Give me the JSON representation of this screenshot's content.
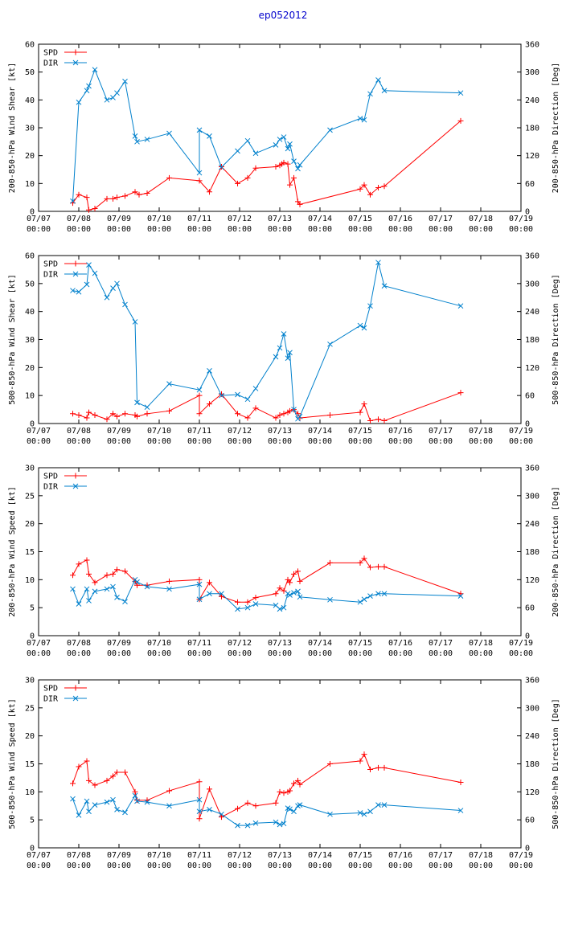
{
  "page": {
    "title": "ep052012",
    "title_color": "#0000cc"
  },
  "colors": {
    "spd": "#ff0000",
    "dir": "#0080cc",
    "axis": "#000000"
  },
  "x_axis": {
    "min": 0,
    "max": 12,
    "ticks": [
      0,
      1,
      2,
      3,
      4,
      5,
      6,
      7,
      8,
      9,
      10,
      11,
      12
    ],
    "tick_labels": [
      "07/07",
      "07/08",
      "07/09",
      "07/10",
      "07/11",
      "07/12",
      "07/13",
      "07/14",
      "07/15",
      "07/16",
      "07/17",
      "07/18",
      "07/19"
    ],
    "tick_sublabels": [
      "00:00",
      "00:00",
      "00:00",
      "00:00",
      "00:00",
      "00:00",
      "00:00",
      "00:00",
      "00:00",
      "00:00",
      "00:00",
      "00:00",
      "00:00"
    ]
  },
  "chart_data": [
    {
      "type": "line",
      "ylabel": "200-850-hPa Wind Shear [kt]",
      "y2label": "200-850-hPa Direction [Deg]",
      "ylim": [
        0,
        60
      ],
      "yticks": [
        0,
        10,
        20,
        30,
        40,
        50,
        60
      ],
      "y2lim": [
        0,
        360
      ],
      "y2ticks": [
        0,
        60,
        120,
        180,
        240,
        300,
        360
      ],
      "series": [
        {
          "name": "SPD",
          "axis": "left",
          "x": [
            0.85,
            1.0,
            1.2,
            1.25,
            1.4,
            1.7,
            1.85,
            1.95,
            2.15,
            2.4,
            2.5,
            2.7,
            3.25,
            4.0,
            4.25,
            4.55,
            4.95,
            5.2,
            5.4,
            5.9,
            6.0,
            6.05,
            6.1,
            6.2,
            6.25,
            6.35,
            6.45,
            6.5,
            8.0,
            8.1,
            8.25,
            8.45,
            8.6,
            10.5
          ],
          "y": [
            3,
            6,
            5,
            0.5,
            1,
            4.5,
            4.5,
            5,
            5.5,
            7,
            6,
            6.5,
            12,
            11,
            7,
            16,
            10,
            12,
            15.5,
            16,
            16.5,
            17,
            17.5,
            17,
            9.5,
            12,
            3.5,
            2.5,
            8,
            9.5,
            6,
            8.5,
            9,
            32.5
          ]
        },
        {
          "name": "DIR",
          "axis": "right",
          "x": [
            0.85,
            1.0,
            1.2,
            1.25,
            1.4,
            1.7,
            1.85,
            1.95,
            2.15,
            2.4,
            2.45,
            2.7,
            3.25,
            4.0,
            4.0,
            4.25,
            4.55,
            4.95,
            5.2,
            5.4,
            5.9,
            6.0,
            6.1,
            6.2,
            6.25,
            6.35,
            6.45,
            6.5,
            7.25,
            8.0,
            8.1,
            8.25,
            8.45,
            8.6,
            10.5
          ],
          "y": [
            22,
            235,
            260,
            270,
            305,
            240,
            245,
            255,
            280,
            162,
            150,
            155,
            168,
            83,
            175,
            162,
            95,
            130,
            152,
            125,
            143,
            155,
            160,
            135,
            145,
            108,
            92,
            100,
            175,
            200,
            197,
            253,
            283,
            260,
            255
          ]
        }
      ]
    },
    {
      "type": "line",
      "ylabel": "500-850-hPa Wind Shear [kt]",
      "y2label": "500-850-hPa Direction [Deg]",
      "ylim": [
        0,
        60
      ],
      "yticks": [
        0,
        10,
        20,
        30,
        40,
        50,
        60
      ],
      "y2lim": [
        0,
        360
      ],
      "y2ticks": [
        0,
        60,
        120,
        180,
        240,
        300,
        360
      ],
      "series": [
        {
          "name": "SPD",
          "axis": "left",
          "x": [
            0.85,
            1.0,
            1.2,
            1.25,
            1.4,
            1.7,
            1.85,
            1.95,
            2.15,
            2.4,
            2.45,
            2.7,
            3.25,
            4.0,
            4.0,
            4.25,
            4.55,
            4.95,
            5.2,
            5.4,
            5.9,
            6.0,
            6.1,
            6.2,
            6.25,
            6.35,
            6.45,
            6.5,
            7.25,
            8.0,
            8.1,
            8.25,
            8.45,
            8.6,
            10.5
          ],
          "y": [
            3.5,
            3,
            2,
            4,
            3,
            1.5,
            3.5,
            2.5,
            3.5,
            3,
            2.5,
            3.5,
            4.5,
            10,
            3.5,
            7,
            10.5,
            3.5,
            2,
            5.5,
            2,
            3,
            3.5,
            4,
            4.5,
            5,
            3.5,
            2,
            3,
            4,
            7,
            1,
            1.5,
            1,
            11
          ]
        },
        {
          "name": "DIR",
          "axis": "right",
          "x": [
            0.85,
            1.0,
            1.2,
            1.25,
            1.4,
            1.7,
            1.85,
            1.95,
            2.15,
            2.4,
            2.45,
            2.7,
            3.25,
            4.0,
            4.25,
            4.55,
            4.95,
            5.2,
            5.4,
            5.9,
            6.0,
            6.1,
            6.2,
            6.25,
            6.35,
            6.45,
            6.5,
            7.25,
            8.0,
            8.1,
            8.25,
            8.45,
            8.6,
            10.5
          ],
          "y": [
            285,
            282,
            298,
            340,
            322,
            270,
            290,
            300,
            255,
            218,
            45,
            35,
            85,
            72,
            113,
            60,
            62,
            52,
            75,
            143,
            162,
            192,
            140,
            152,
            30,
            10,
            15,
            170,
            210,
            205,
            252,
            345,
            295,
            252
          ]
        }
      ]
    },
    {
      "type": "line",
      "ylabel": "200-850-hPa Wind Speed [kt]",
      "y2label": "200-850-hPa Direction [Deg]",
      "ylim": [
        0,
        30
      ],
      "yticks": [
        0,
        5,
        10,
        15,
        20,
        25,
        30
      ],
      "y2lim": [
        0,
        360
      ],
      "y2ticks": [
        0,
        60,
        120,
        180,
        240,
        300,
        360
      ],
      "series": [
        {
          "name": "SPD",
          "axis": "left",
          "x": [
            0.85,
            1.0,
            1.2,
            1.25,
            1.4,
            1.7,
            1.85,
            1.95,
            2.15,
            2.4,
            2.45,
            2.7,
            3.25,
            4.0,
            4.0,
            4.25,
            4.55,
            4.95,
            5.2,
            5.4,
            5.9,
            6.0,
            6.1,
            6.2,
            6.25,
            6.35,
            6.45,
            6.5,
            7.25,
            8.0,
            8.1,
            8.25,
            8.45,
            8.6,
            10.5
          ],
          "y": [
            10.8,
            12.8,
            13.5,
            11,
            9.5,
            10.8,
            11,
            11.8,
            11.5,
            9.7,
            9,
            9,
            9.7,
            10,
            6.5,
            9.5,
            7,
            6,
            6,
            6.8,
            7.5,
            8.5,
            8,
            10,
            9.5,
            11,
            11.5,
            9.7,
            13,
            13,
            13.8,
            12.2,
            12.3,
            12.3,
            7.5
          ]
        },
        {
          "name": "DIR",
          "axis": "right",
          "x": [
            0.85,
            1.0,
            1.2,
            1.25,
            1.4,
            1.7,
            1.85,
            1.95,
            2.15,
            2.4,
            2.45,
            2.7,
            3.25,
            4.0,
            4.0,
            4.25,
            4.55,
            4.95,
            5.2,
            5.4,
            5.9,
            6.0,
            6.1,
            6.2,
            6.25,
            6.35,
            6.45,
            6.5,
            7.25,
            8.0,
            8.1,
            8.25,
            8.45,
            8.6,
            10.5
          ],
          "y": [
            100,
            68,
            100,
            75,
            95,
            100,
            105,
            82,
            73,
            120,
            115,
            105,
            100,
            110,
            78,
            90,
            90,
            57,
            60,
            68,
            65,
            57,
            60,
            90,
            87,
            92,
            95,
            83,
            77,
            72,
            78,
            85,
            90,
            90,
            85
          ]
        }
      ]
    },
    {
      "type": "line",
      "ylabel": "500-850-hPa Wind Speed [kt]",
      "y2label": "500-850-hPa Direction [Deg]",
      "ylim": [
        0,
        30
      ],
      "yticks": [
        0,
        5,
        10,
        15,
        20,
        25,
        30
      ],
      "y2lim": [
        0,
        360
      ],
      "y2ticks": [
        0,
        60,
        120,
        180,
        240,
        300,
        360
      ],
      "series": [
        {
          "name": "SPD",
          "axis": "left",
          "x": [
            0.85,
            1.0,
            1.2,
            1.25,
            1.4,
            1.7,
            1.85,
            1.95,
            2.15,
            2.4,
            2.45,
            2.7,
            3.25,
            4.0,
            4.0,
            4.25,
            4.55,
            4.95,
            5.2,
            5.4,
            5.9,
            6.0,
            6.1,
            6.2,
            6.25,
            6.35,
            6.45,
            6.5,
            7.25,
            8.0,
            8.1,
            8.25,
            8.45,
            8.6,
            10.5
          ],
          "y": [
            11.5,
            14.5,
            15.5,
            12,
            11.2,
            12,
            12.8,
            13.5,
            13.5,
            10,
            8.5,
            8.5,
            10.2,
            11.8,
            5.2,
            10.5,
            5.5,
            7,
            8,
            7.5,
            8,
            10,
            9.8,
            10,
            10.2,
            11.5,
            12,
            11.3,
            15,
            15.5,
            16.7,
            14,
            14.3,
            14.3,
            11.7
          ]
        },
        {
          "name": "DIR",
          "axis": "right",
          "x": [
            0.85,
            1.0,
            1.2,
            1.25,
            1.4,
            1.7,
            1.85,
            1.95,
            2.15,
            2.4,
            2.45,
            2.7,
            3.25,
            4.0,
            4.0,
            4.25,
            4.55,
            4.95,
            5.2,
            5.4,
            5.9,
            6.0,
            6.1,
            6.2,
            6.25,
            6.35,
            6.45,
            6.5,
            7.25,
            8.0,
            8.1,
            8.25,
            8.45,
            8.6,
            10.5
          ],
          "y": [
            105,
            70,
            100,
            78,
            92,
            98,
            103,
            82,
            76,
            112,
            100,
            98,
            90,
            103,
            78,
            82,
            72,
            48,
            48,
            53,
            55,
            50,
            52,
            85,
            83,
            78,
            90,
            92,
            72,
            75,
            72,
            78,
            92,
            92,
            80
          ]
        }
      ]
    }
  ]
}
